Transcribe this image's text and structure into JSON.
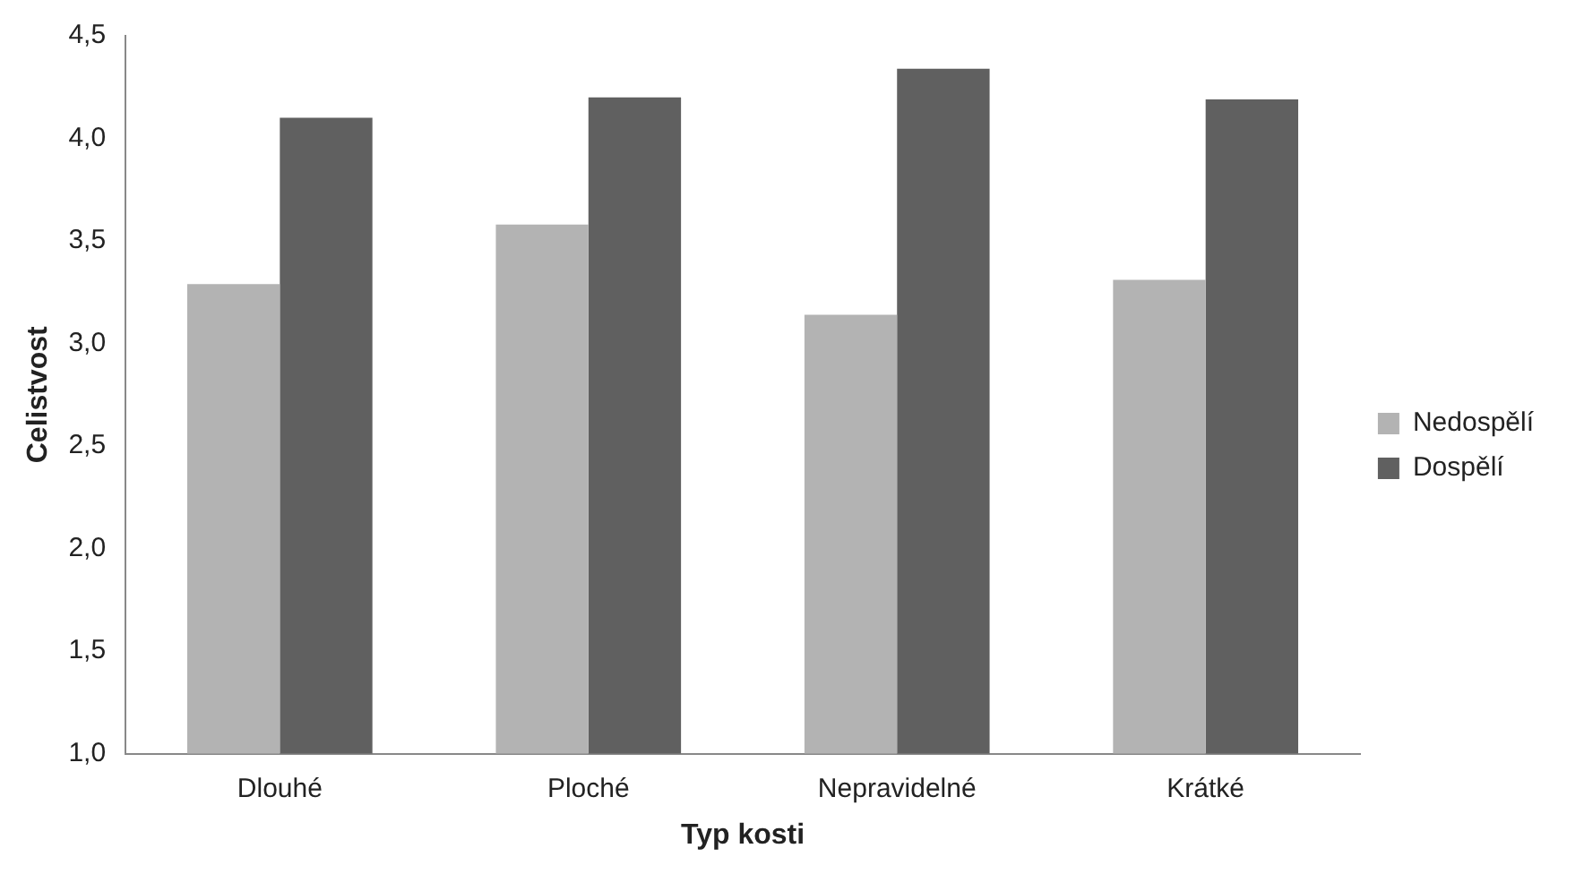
{
  "chart_data": {
    "type": "bar",
    "xlabel": "Typ kosti",
    "ylabel": "Celistvost",
    "categories": [
      "Dlouhé",
      "Ploché",
      "Nepravidelné",
      "Krátké"
    ],
    "series": [
      {
        "name": "Nedospělí",
        "color": "#b3b3b3",
        "values": [
          3.29,
          3.58,
          3.14,
          3.31
        ]
      },
      {
        "name": "Dospělí",
        "color": "#606060",
        "values": [
          4.1,
          4.2,
          4.34,
          4.19
        ]
      }
    ],
    "ylim": [
      1,
      4.5
    ],
    "yticks": [
      {
        "value": 1,
        "label": "1,0"
      },
      {
        "value": 1.5,
        "label": "1,5"
      },
      {
        "value": 2,
        "label": "2,0"
      },
      {
        "value": 2.5,
        "label": "2,5"
      },
      {
        "value": 3,
        "label": "3,0"
      },
      {
        "value": 3.5,
        "label": "3,5"
      },
      {
        "value": 4,
        "label": "4,0"
      },
      {
        "value": 4.5,
        "label": "4,5"
      }
    ],
    "grid": false,
    "legend": "right"
  }
}
